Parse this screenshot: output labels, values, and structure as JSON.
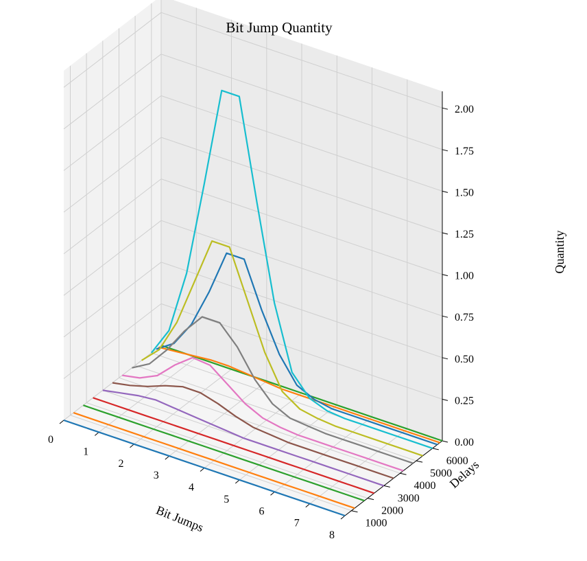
{
  "chart_data": {
    "type": "line",
    "projection": "3d",
    "title": "Bit Jump Quantity",
    "xlabel": "Bit Jumps",
    "ylabel": "Delays",
    "zlabel": "Quantity",
    "x": [
      0,
      0.5,
      1,
      1.5,
      2,
      2.5,
      3,
      3.5,
      4,
      4.5,
      5,
      5.5,
      6,
      6.5,
      7,
      7.5,
      8
    ],
    "xlim": [
      0,
      8
    ],
    "ylim": [
      600,
      6600
    ],
    "zlim": [
      0,
      2.1
    ],
    "xticks": [
      "0",
      "1",
      "2",
      "3",
      "4",
      "5",
      "6",
      "7",
      "8"
    ],
    "yticks": [
      "1000",
      "2000",
      "3000",
      "4000",
      "5000",
      "6000"
    ],
    "zticks": [
      "0.00",
      "0.25",
      "0.50",
      "0.75",
      "1.00",
      "1.25",
      "1.50",
      "1.75",
      "2.00"
    ],
    "grid": true,
    "series": [
      {
        "delay": 600,
        "color": "#1f77b4",
        "values": [
          0,
          0,
          0,
          0,
          0,
          0,
          0,
          0,
          0,
          0,
          0,
          0,
          0,
          0,
          0,
          0,
          0
        ]
      },
      {
        "delay": 1200,
        "color": "#ff7f0e",
        "values": [
          0,
          0,
          0,
          0,
          0,
          0,
          0,
          0,
          0,
          0,
          0,
          0,
          0,
          0,
          0,
          0,
          0
        ]
      },
      {
        "delay": 1800,
        "color": "#2ca02c",
        "values": [
          0,
          0,
          0,
          0,
          0,
          0,
          0,
          0,
          0,
          0,
          0,
          0,
          0,
          0,
          0,
          0,
          0
        ]
      },
      {
        "delay": 2400,
        "color": "#d62728",
        "values": [
          0,
          0,
          0,
          0,
          0,
          0,
          0,
          0,
          0,
          0,
          0,
          0,
          0,
          0,
          0,
          0,
          0
        ]
      },
      {
        "delay": 3000,
        "color": "#9467bd",
        "values": [
          0,
          0.02,
          0.04,
          0.05,
          0.04,
          0.03,
          0.02,
          0.01,
          0,
          0,
          0,
          0,
          0,
          0,
          0,
          0,
          0
        ]
      },
      {
        "delay": 3600,
        "color": "#8c564b",
        "values": [
          0,
          0.02,
          0.05,
          0.09,
          0.12,
          0.12,
          0.09,
          0.05,
          0.02,
          0.01,
          0,
          0,
          0,
          0,
          0,
          0,
          0
        ]
      },
      {
        "delay": 4200,
        "color": "#e377c2",
        "values": [
          0,
          0.02,
          0.07,
          0.17,
          0.25,
          0.24,
          0.16,
          0.08,
          0.03,
          0.01,
          0,
          0,
          0,
          0,
          0,
          0,
          0
        ]
      },
      {
        "delay": 4800,
        "color": "#7f7f7f",
        "values": [
          0,
          0.06,
          0.18,
          0.33,
          0.45,
          0.45,
          0.34,
          0.18,
          0.07,
          0.02,
          0.01,
          0,
          0,
          0,
          0,
          0,
          0
        ]
      },
      {
        "delay": 5400,
        "color": "#bcbd22",
        "values": [
          0,
          0.1,
          0.3,
          0.58,
          0.86,
          0.86,
          0.58,
          0.3,
          0.1,
          0.03,
          0.01,
          0,
          0,
          0,
          0,
          0,
          0
        ]
      },
      {
        "delay": 6000,
        "color": "#17becf",
        "values": [
          0,
          0.17,
          0.55,
          1.12,
          1.72,
          1.72,
          1.12,
          0.55,
          0.17,
          0.05,
          0.01,
          0,
          0,
          0,
          0,
          0,
          0
        ]
      },
      {
        "delay": 6300,
        "color": "#1f77b4",
        "values": [
          0,
          0.07,
          0.22,
          0.45,
          0.72,
          0.72,
          0.45,
          0.22,
          0.07,
          0.02,
          0,
          0,
          0,
          0,
          0,
          0,
          0
        ]
      },
      {
        "delay": 6450,
        "color": "#ff7f0e",
        "values": [
          0,
          0.01,
          0.02,
          0.03,
          0.03,
          0.02,
          0.01,
          0,
          0,
          0,
          0,
          0,
          0,
          0,
          0,
          0,
          0
        ]
      },
      {
        "delay": 6600,
        "color": "#2ca02c",
        "values": [
          0,
          0,
          0,
          0,
          0,
          0,
          0,
          0,
          0,
          0,
          0,
          0,
          0,
          0,
          0,
          0,
          0
        ]
      }
    ]
  }
}
